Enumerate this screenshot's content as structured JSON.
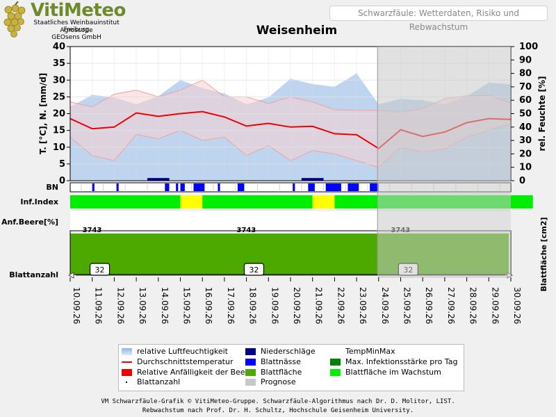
{
  "header": {
    "logo_title": "VitiMeteo",
    "logo_lines": [
      "Staatliches Weinbauinstitut Freiburg",
      "Agroscope",
      "GEOsens GmbH"
    ],
    "subtitle": "Schwarzfäule: Wetterdaten, Risiko und Rebwachstum",
    "station": "Weisenheim"
  },
  "colors": {
    "humidity_fill": "#b4cdec",
    "humidity_edge": "#a8c8ec",
    "temp_line": "#ee0000",
    "temp_band_fill": "#f7d0d0",
    "temp_band_edge": "#f0a0a0",
    "precip": "#00008b",
    "leaf_wetness": "#0000ff",
    "inf_low": "#00ee00",
    "inf_mid": "#ffff00",
    "leaf_area": "#4da800",
    "forecast_overlay": "#c8c8c8"
  },
  "chart_data": {
    "type": "line",
    "x_labels": [
      "10.09.26",
      "11.09.26",
      "12.09.26",
      "13.09.26",
      "14.09.26",
      "15.09.26",
      "16.09.26",
      "17.09.26",
      "18.09.26",
      "19.09.26",
      "20.09.26",
      "21.09.26",
      "22.09.26",
      "23.09.26",
      "24.09.26",
      "25.09.26",
      "26.09.26",
      "27.09.26",
      "28.09.26",
      "29.09.26",
      "30.09.26"
    ],
    "ylabel_left": "T. [°C], N. [mm/d]",
    "ylabel_right": "rel. Feuchte [%]",
    "ylabel_right2": "Blattfläche [cm2]",
    "ylim_left": [
      0,
      40
    ],
    "ylim_right": [
      0,
      100
    ],
    "left_ticks": [
      0,
      5,
      10,
      15,
      20,
      25,
      30,
      35,
      40
    ],
    "right_ticks": [
      0,
      10,
      20,
      30,
      40,
      50,
      60,
      70,
      80,
      90,
      100
    ],
    "grid": true,
    "forecast_start_index": 14,
    "series": [
      {
        "name": "relative Luftfeuchtigkeit",
        "axis": "right",
        "values": [
          55,
          64,
          62,
          57,
          63,
          75,
          69,
          65,
          57,
          62,
          76,
          72,
          70,
          80,
          57,
          61,
          60,
          57,
          63,
          73,
          72
        ]
      },
      {
        "name": "Durchschnittstemperatur",
        "axis": "left",
        "values": [
          18.5,
          15.5,
          16.0,
          20.2,
          19.2,
          20.0,
          20.6,
          19.0,
          16.3,
          17.1,
          16.0,
          16.2,
          14.0,
          13.7,
          9.6,
          15.2,
          13.2,
          14.5,
          17.3,
          18.5,
          18.3
        ]
      },
      {
        "name": "TempMax",
        "axis": "left",
        "values": [
          23.5,
          22.0,
          25.8,
          27.0,
          25.0,
          27.0,
          30.0,
          25.0,
          25.0,
          23.0,
          25.0,
          23.5,
          21.2,
          21.0,
          21.0,
          20.5,
          21.5,
          24.5,
          25.3,
          25.4,
          23.2
        ]
      },
      {
        "name": "TempMin",
        "axis": "left",
        "values": [
          13.0,
          7.5,
          6.0,
          13.8,
          12.5,
          15.0,
          12.0,
          13.0,
          7.5,
          10.5,
          6.0,
          9.0,
          8.0,
          6.0,
          4.0,
          10.0,
          8.5,
          9.5,
          13.0,
          15.0,
          17.0
        ]
      }
    ],
    "precip_bars": [
      {
        "start": 3.5,
        "end": 4.5,
        "value": 0.8
      },
      {
        "start": 10.5,
        "end": 11.5,
        "value": 0.8
      }
    ],
    "rows": [
      {
        "name": "BN",
        "label": "BN"
      },
      {
        "name": "Inf.Index",
        "label": "Inf.Index"
      },
      {
        "name": "Anf.Beere",
        "label": "Anf.Beere[%]"
      },
      {
        "name": "Blattanzahl",
        "label": "Blattanzahl"
      }
    ],
    "leaf_wetness_segments": [
      [
        1.0,
        1.1
      ],
      [
        2.1,
        2.2
      ],
      [
        4.3,
        4.5
      ],
      [
        4.8,
        4.9
      ],
      [
        5.0,
        5.2
      ],
      [
        5.6,
        6.1
      ],
      [
        6.7,
        6.8
      ],
      [
        7.6,
        7.9
      ],
      [
        10.1,
        10.2
      ],
      [
        10.8,
        11.1
      ],
      [
        11.6,
        12.3
      ],
      [
        12.6,
        13.1
      ],
      [
        13.6,
        14.0
      ]
    ],
    "inf_index_segments": [
      {
        "start": 0.0,
        "end": 5.0,
        "level": "low"
      },
      {
        "start": 5.0,
        "end": 6.0,
        "level": "mid"
      },
      {
        "start": 6.0,
        "end": 11.0,
        "level": "low"
      },
      {
        "start": 11.0,
        "end": 12.0,
        "level": "mid"
      },
      {
        "start": 12.0,
        "end": 21.0,
        "level": "low"
      }
    ],
    "leaf_area_values": [
      {
        "index": 1.5,
        "label": "3743"
      },
      {
        "index": 8.5,
        "label": "3743"
      },
      {
        "index": 15.5,
        "label": "3743"
      }
    ],
    "leaf_count_boxes": [
      {
        "index": 1.5,
        "label": "32"
      },
      {
        "index": 8.5,
        "label": "32"
      },
      {
        "index": 15.5,
        "label": "32"
      }
    ]
  },
  "legend": [
    {
      "label": "relative Luftfeuchtigkeit",
      "swatch": "area",
      "color": "#b4cdec"
    },
    {
      "label": "Niederschläge",
      "swatch": "box",
      "color": "#00008b"
    },
    {
      "label": "TempMinMax",
      "swatch": "none",
      "color": "#f7d0d0"
    },
    {
      "label": "Durchschnittstemperatur",
      "swatch": "line",
      "color": "#ee0000"
    },
    {
      "label": "Blattnässe",
      "swatch": "box",
      "color": "#0000ff"
    },
    {
      "label": "Max. Infektionsstärke pro Tag",
      "swatch": "box",
      "color": "#008000"
    },
    {
      "label": "Relative Anfälligkeit der Beere",
      "swatch": "box",
      "color": "#ee0000"
    },
    {
      "label": "Blattfläche",
      "swatch": "box",
      "color": "#4da800"
    },
    {
      "label": "Blattfläche im Wachstum",
      "swatch": "box",
      "color": "#00ee00"
    },
    {
      "label": "Blattanzahl",
      "swatch": "dot",
      "color": "#000000"
    },
    {
      "label": "Prognose",
      "swatch": "box",
      "color": "#c8c8c8"
    }
  ],
  "footer": {
    "line1": "VM Schwarzfäule-Grafik © VitiMeteo-Gruppe. Schwarzfäule-Algorithmus nach Dr. D. Molitor, LIST.",
    "line2": "Rebwachstum nach Prof. Dr. H. Schultz, Hochschule Geisenheim University."
  }
}
